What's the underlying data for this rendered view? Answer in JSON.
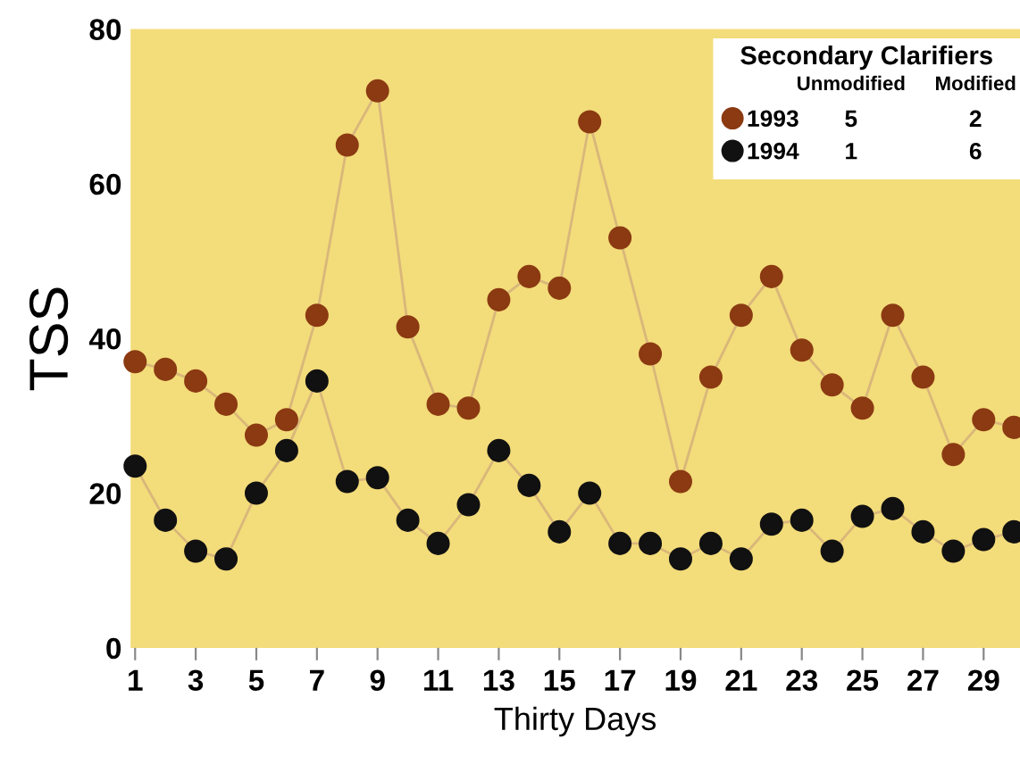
{
  "chart_data": {
    "type": "line",
    "xlabel": "Thirty Days",
    "ylabel": "TSS",
    "legend_title": "Secondary Clarifiers",
    "x": [
      1,
      2,
      3,
      4,
      5,
      6,
      7,
      8,
      9,
      10,
      11,
      12,
      13,
      14,
      15,
      16,
      17,
      18,
      19,
      20,
      21,
      22,
      23,
      24,
      25,
      26,
      27,
      28,
      29,
      30
    ],
    "series": [
      {
        "name": "1993",
        "color": "#8b3a12",
        "values": [
          37,
          36,
          34.5,
          31.5,
          27.5,
          29.5,
          43,
          65,
          72,
          41.5,
          31.5,
          31,
          45,
          48,
          46.5,
          68,
          53,
          38,
          21.5,
          35,
          43,
          48,
          38.5,
          34,
          31,
          43,
          35,
          25,
          29.5,
          28.5
        ]
      },
      {
        "name": "1994",
        "color": "#111111",
        "values": [
          23.5,
          16.5,
          12.5,
          11.5,
          20,
          25.5,
          34.5,
          21.5,
          22,
          16.5,
          13.5,
          18.5,
          25.5,
          21,
          15,
          20,
          13.5,
          13.5,
          11.5,
          13.5,
          11.5,
          16,
          16.5,
          12.5,
          17,
          18,
          15,
          12.5,
          14,
          15
        ]
      }
    ],
    "annotations": [
      "Unmodified",
      "Modified",
      "5",
      "2",
      "1",
      "6"
    ],
    "xlim": [
      0.85,
      30.2
    ],
    "xticks": [
      1,
      3,
      5,
      7,
      9,
      11,
      13,
      15,
      17,
      19,
      21,
      23,
      25,
      27,
      29
    ],
    "ylim": [
      0,
      80
    ],
    "yticks": [
      0,
      20,
      40,
      60,
      80
    ],
    "marker": "circle",
    "line_style": "solid",
    "grid": false,
    "legend": "top right"
  }
}
